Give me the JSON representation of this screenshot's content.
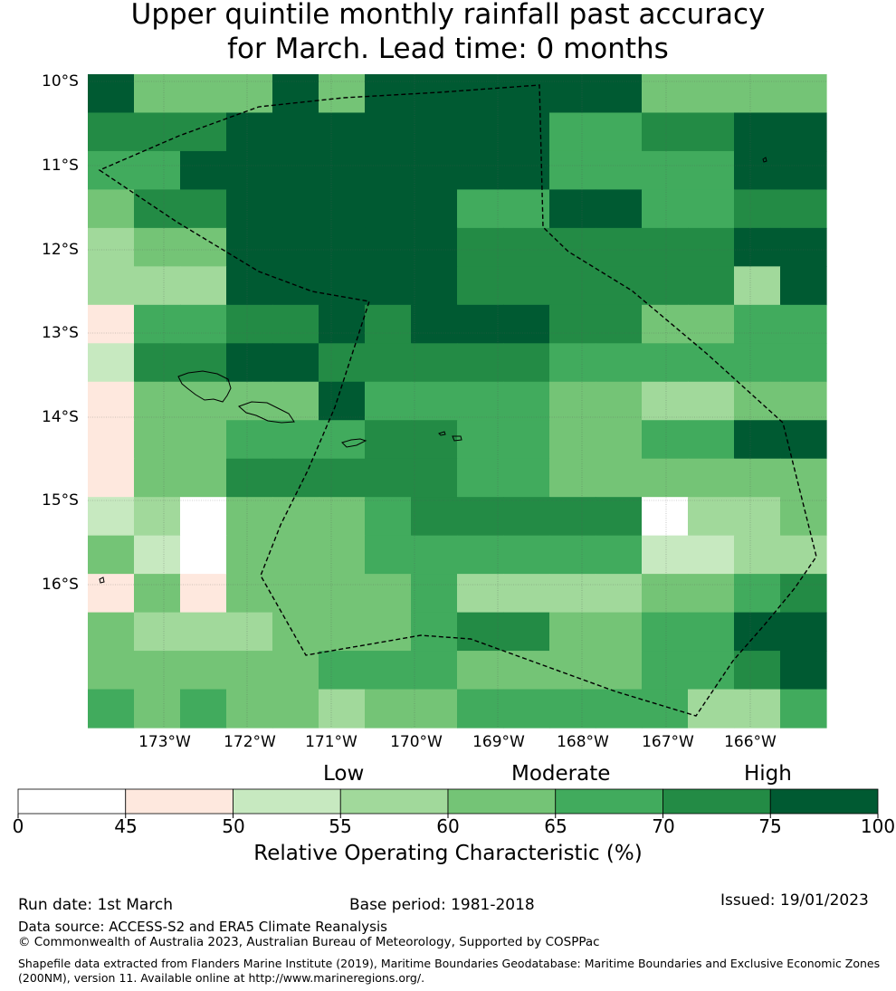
{
  "title_line1": "Upper quintile monthly rainfall past accuracy",
  "title_line2": "for March. Lead time: 0 months",
  "map": {
    "lat_labels": [
      "10°S",
      "11°S",
      "12°S",
      "13°S",
      "14°S",
      "15°S",
      "16°S"
    ],
    "lon_labels": [
      "173°W",
      "172°W",
      "171°W",
      "170°W",
      "169°W",
      "168°W",
      "167°W",
      "166°W"
    ],
    "grid_note": "ROC accuracy classes per cell (0=0-45 ... 7=75-100); rows north to south",
    "cells": [
      [
        7,
        4,
        4,
        4,
        7,
        4,
        7,
        7,
        7,
        7,
        7,
        7,
        4,
        4,
        4,
        4
      ],
      [
        6,
        6,
        6,
        7,
        7,
        7,
        7,
        7,
        7,
        7,
        5,
        5,
        6,
        6,
        7,
        7
      ],
      [
        5,
        5,
        7,
        7,
        7,
        7,
        7,
        7,
        7,
        7,
        5,
        5,
        5,
        5,
        7,
        7
      ],
      [
        4,
        6,
        6,
        7,
        7,
        7,
        7,
        7,
        5,
        5,
        7,
        7,
        5,
        5,
        6,
        6
      ],
      [
        3,
        4,
        4,
        7,
        7,
        7,
        7,
        7,
        6,
        6,
        6,
        6,
        6,
        6,
        7,
        7
      ],
      [
        3,
        3,
        3,
        7,
        7,
        7,
        7,
        7,
        6,
        6,
        6,
        6,
        6,
        6,
        3,
        7
      ],
      [
        1,
        5,
        5,
        6,
        6,
        7,
        6,
        7,
        7,
        7,
        6,
        6,
        4,
        4,
        5,
        5
      ],
      [
        2,
        6,
        6,
        7,
        7,
        6,
        6,
        6,
        6,
        6,
        5,
        5,
        5,
        5,
        5,
        5
      ],
      [
        1,
        4,
        4,
        4,
        4,
        7,
        5,
        5,
        5,
        5,
        4,
        4,
        3,
        3,
        4,
        4
      ],
      [
        1,
        4,
        4,
        5,
        5,
        5,
        6,
        6,
        5,
        5,
        4,
        4,
        5,
        5,
        7,
        7
      ],
      [
        1,
        4,
        4,
        6,
        6,
        6,
        6,
        6,
        5,
        5,
        4,
        4,
        4,
        4,
        4,
        4
      ],
      [
        2,
        3,
        0,
        4,
        4,
        4,
        5,
        6,
        6,
        6,
        6,
        6,
        0,
        3,
        3,
        4
      ],
      [
        4,
        2,
        0,
        4,
        4,
        4,
        5,
        5,
        5,
        5,
        5,
        5,
        2,
        2,
        3,
        3
      ],
      [
        1,
        4,
        1,
        4,
        4,
        4,
        4,
        5,
        3,
        3,
        3,
        3,
        4,
        4,
        5,
        6
      ],
      [
        4,
        3,
        3,
        3,
        4,
        4,
        4,
        5,
        6,
        6,
        4,
        4,
        5,
        5,
        7,
        7
      ],
      [
        4,
        4,
        4,
        4,
        4,
        5,
        5,
        5,
        4,
        4,
        4,
        4,
        5,
        5,
        6,
        7
      ],
      [
        5,
        4,
        5,
        4,
        4,
        3,
        4,
        4,
        5,
        5,
        5,
        5,
        5,
        3,
        3,
        5
      ]
    ],
    "colors": [
      "#ffffff",
      "#fee8de",
      "#c7e9c0",
      "#a1d99b",
      "#74c476",
      "#41ab5d",
      "#238b45",
      "#005a32"
    ]
  },
  "legend": {
    "categories": [
      "Low",
      "Moderate",
      "High"
    ],
    "ticks": [
      "0",
      "45",
      "50",
      "55",
      "60",
      "65",
      "70",
      "75",
      "100"
    ],
    "label": "Relative Operating Characteristic (%)"
  },
  "footer": {
    "run_date": "Run date: 1st March",
    "base_period": "Base period: 1981-2018",
    "issued": "Issued: 19/01/2023",
    "data_source": "Data source: ACCESS-S2 and ERA5 Climate Reanalysis",
    "copyright": "© Commonwealth of Australia 2023, Australian Bureau of Meteorology, Supported by COSPPac",
    "shapefile": "Shapefile data extracted from Flanders Marine Institute (2019), Maritime Boundaries Geodatabase: Maritime Boundaries and Exclusive Economic Zones (200NM), version 11. Available online at http://www.marineregions.org/."
  }
}
